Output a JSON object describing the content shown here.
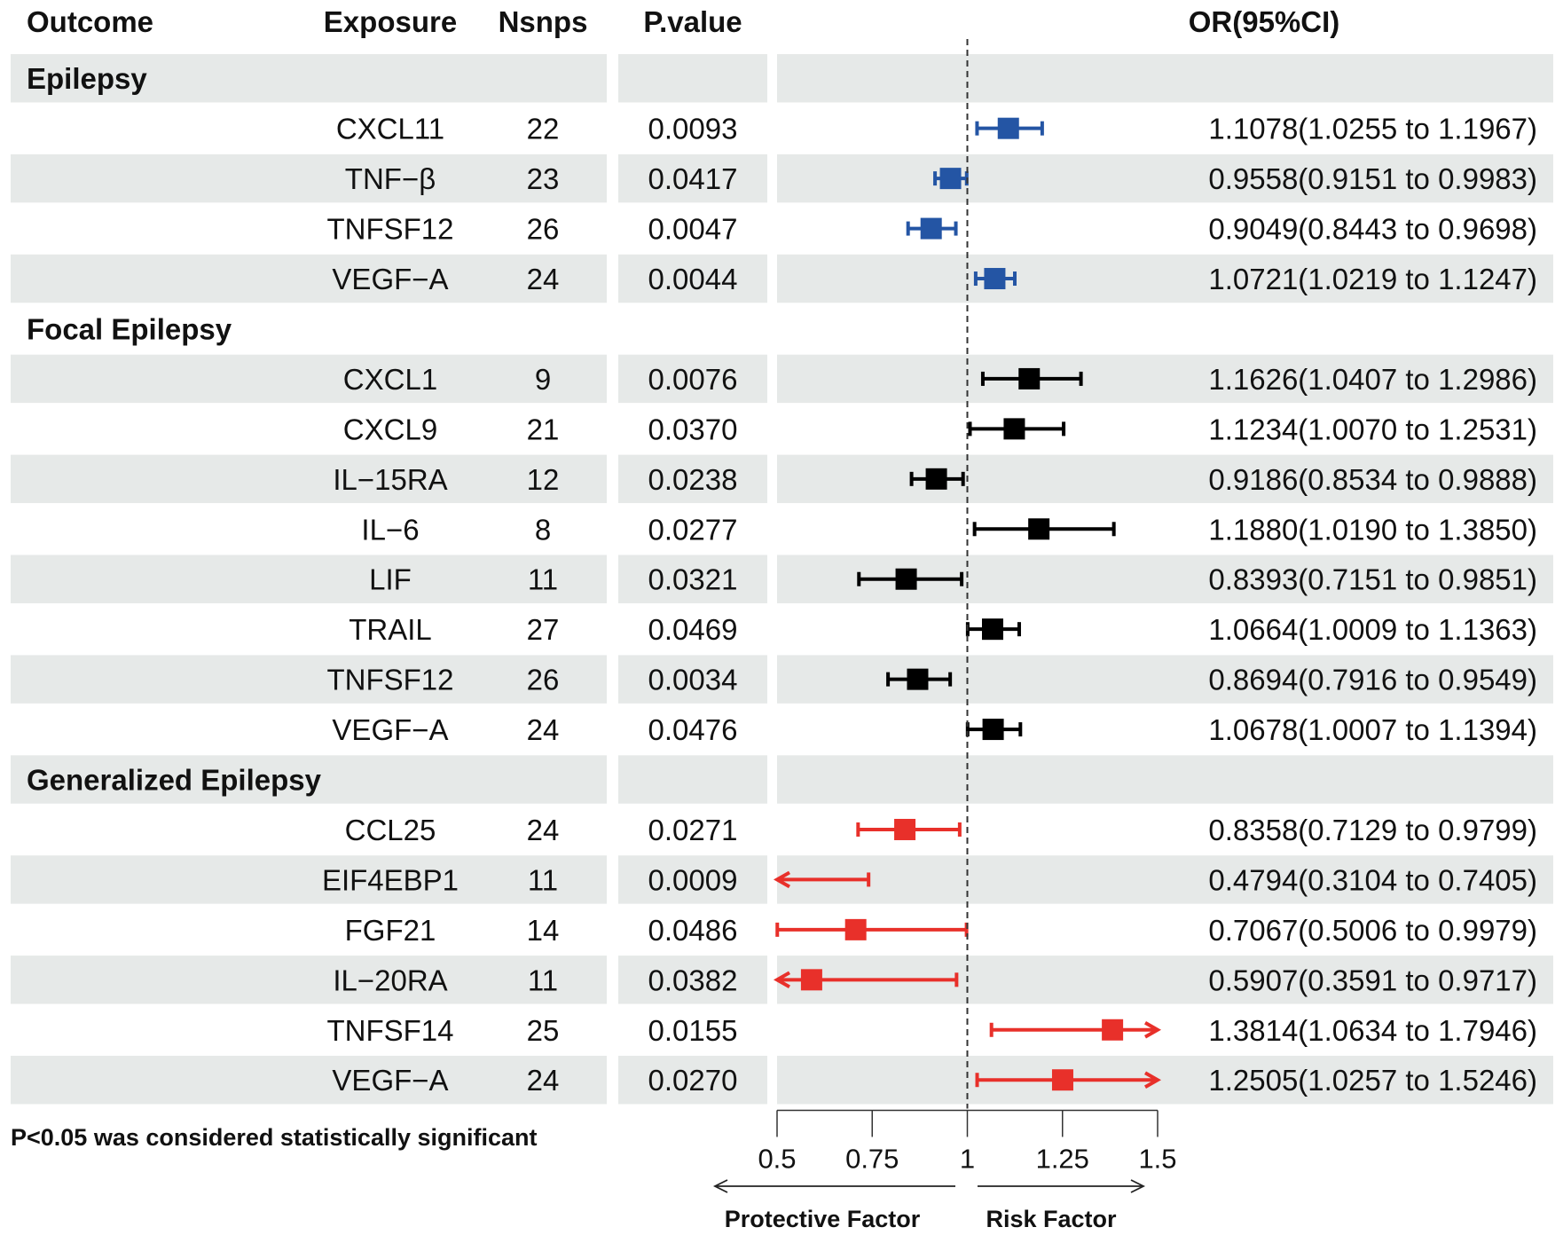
{
  "chart_data": {
    "type": "forest",
    "headers": {
      "outcome": "Outcome",
      "exposure": "Exposure",
      "nsnps": "Nsnps",
      "pvalue": "P.value",
      "or": "OR(95%CI)"
    },
    "groups": [
      {
        "outcome": "Epilepsy",
        "color": "#2455a4",
        "rows": [
          {
            "exposure": "CXCL11",
            "nsnps": "22",
            "p": "0.0093",
            "or": 1.1078,
            "lo": 1.0255,
            "hi": 1.1967,
            "or_text": "1.1078(1.0255 to 1.1967)"
          },
          {
            "exposure": "TNF−β",
            "nsnps": "23",
            "p": "0.0417",
            "or": 0.9558,
            "lo": 0.9151,
            "hi": 0.9983,
            "or_text": "0.9558(0.9151 to 0.9983)"
          },
          {
            "exposure": "TNFSF12",
            "nsnps": "26",
            "p": "0.0047",
            "or": 0.9049,
            "lo": 0.8443,
            "hi": 0.9698,
            "or_text": "0.9049(0.8443 to 0.9698)"
          },
          {
            "exposure": "VEGF−A",
            "nsnps": "24",
            "p": "0.0044",
            "or": 1.0721,
            "lo": 1.0219,
            "hi": 1.1247,
            "or_text": "1.0721(1.0219 to 1.1247)"
          }
        ]
      },
      {
        "outcome": "Focal Epilepsy",
        "color": "#000000",
        "rows": [
          {
            "exposure": "CXCL1",
            "nsnps": "9",
            "p": "0.0076",
            "or": 1.1626,
            "lo": 1.0407,
            "hi": 1.2986,
            "or_text": "1.1626(1.0407 to 1.2986)"
          },
          {
            "exposure": "CXCL9",
            "nsnps": "21",
            "p": "0.0370",
            "or": 1.1234,
            "lo": 1.007,
            "hi": 1.2531,
            "or_text": "1.1234(1.0070 to 1.2531)"
          },
          {
            "exposure": "IL−15RA",
            "nsnps": "12",
            "p": "0.0238",
            "or": 0.9186,
            "lo": 0.8534,
            "hi": 0.9888,
            "or_text": "0.9186(0.8534 to 0.9888)"
          },
          {
            "exposure": "IL−6",
            "nsnps": "8",
            "p": "0.0277",
            "or": 1.188,
            "lo": 1.019,
            "hi": 1.385,
            "or_text": "1.1880(1.0190 to 1.3850)"
          },
          {
            "exposure": "LIF",
            "nsnps": "11",
            "p": "0.0321",
            "or": 0.8393,
            "lo": 0.7151,
            "hi": 0.9851,
            "or_text": "0.8393(0.7151 to 0.9851)"
          },
          {
            "exposure": "TRAIL",
            "nsnps": "27",
            "p": "0.0469",
            "or": 1.0664,
            "lo": 1.0009,
            "hi": 1.1363,
            "or_text": "1.0664(1.0009 to 1.1363)"
          },
          {
            "exposure": "TNFSF12",
            "nsnps": "26",
            "p": "0.0034",
            "or": 0.8694,
            "lo": 0.7916,
            "hi": 0.9549,
            "or_text": "0.8694(0.7916 to 0.9549)"
          },
          {
            "exposure": "VEGF−A",
            "nsnps": "24",
            "p": "0.0476",
            "or": 1.0678,
            "lo": 1.0007,
            "hi": 1.1394,
            "or_text": "1.0678(1.0007 to 1.1394)"
          }
        ]
      },
      {
        "outcome": "Generalized Epilepsy",
        "color": "#e8302a",
        "rows": [
          {
            "exposure": "CCL25",
            "nsnps": "24",
            "p": "0.0271",
            "or": 0.8358,
            "lo": 0.7129,
            "hi": 0.9799,
            "or_text": "0.8358(0.7129 to 0.9799)"
          },
          {
            "exposure": "EIF4EBP1",
            "nsnps": "11",
            "p": "0.0009",
            "or": 0.4794,
            "lo": 0.3104,
            "hi": 0.7405,
            "or_text": "0.4794(0.3104 to 0.7405)"
          },
          {
            "exposure": "FGF21",
            "nsnps": "14",
            "p": "0.0486",
            "or": 0.7067,
            "lo": 0.5006,
            "hi": 0.9979,
            "or_text": "0.7067(0.5006 to 0.9979)"
          },
          {
            "exposure": "IL−20RA",
            "nsnps": "11",
            "p": "0.0382",
            "or": 0.5907,
            "lo": 0.3591,
            "hi": 0.9717,
            "or_text": "0.5907(0.3591 to 0.9717)"
          },
          {
            "exposure": "TNFSF14",
            "nsnps": "25",
            "p": "0.0155",
            "or": 1.3814,
            "lo": 1.0634,
            "hi": 1.7946,
            "or_text": "1.3814(1.0634 to 1.7946)"
          },
          {
            "exposure": "VEGF−A",
            "nsnps": "24",
            "p": "0.0270",
            "or": 1.2505,
            "lo": 1.0257,
            "hi": 1.5246,
            "or_text": "1.2505(1.0257 to 1.5246)"
          }
        ]
      }
    ],
    "xlim": [
      0.5,
      1.5
    ],
    "reference_line": 1,
    "xticks": [
      0.5,
      0.75,
      1,
      1.25,
      1.5
    ],
    "xtick_labels": [
      "0.5",
      "0.75",
      "1",
      "1.25",
      "1.5"
    ],
    "footnote": "P<0.05 was considered statistically significant",
    "direction_labels": {
      "left": "Protective Factor",
      "right": "Risk Factor"
    }
  }
}
